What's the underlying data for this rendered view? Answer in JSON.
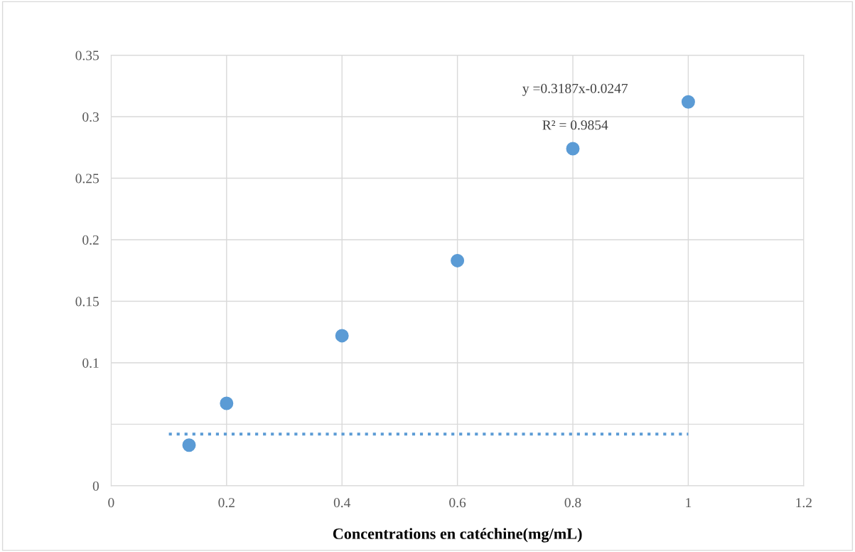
{
  "chart_data": {
    "type": "scatter",
    "xlabel": "Concentrations en catéchine(mg/mL)",
    "xlim": [
      0,
      1.2
    ],
    "xticks": [
      0,
      0.2,
      0.4,
      0.6,
      0.8,
      1,
      1.2
    ],
    "ylim": [
      0,
      0.35
    ],
    "yticks": [
      0,
      {
        "value": 0.05,
        "label": null
      },
      0.1,
      0.15,
      0.2,
      0.25,
      0.3,
      0.35
    ],
    "grid": true,
    "series": [
      {
        "marker": "circle",
        "color": "#5b9bd5",
        "x": [
          0.135,
          0.2,
          0.4,
          0.6,
          0.8,
          1.0
        ],
        "values": [
          0.033,
          0.067,
          0.122,
          0.183,
          0.274,
          0.312
        ]
      },
      {
        "type": "line",
        "marker": "none",
        "color": "#5b9bd5",
        "line_style": "dotted",
        "x": [
          0.1,
          1.0
        ],
        "values": [
          0.042,
          0.042
        ]
      }
    ],
    "annotations": [
      "y =0.3187x-0.0247",
      "R² = 0.9854"
    ]
  }
}
